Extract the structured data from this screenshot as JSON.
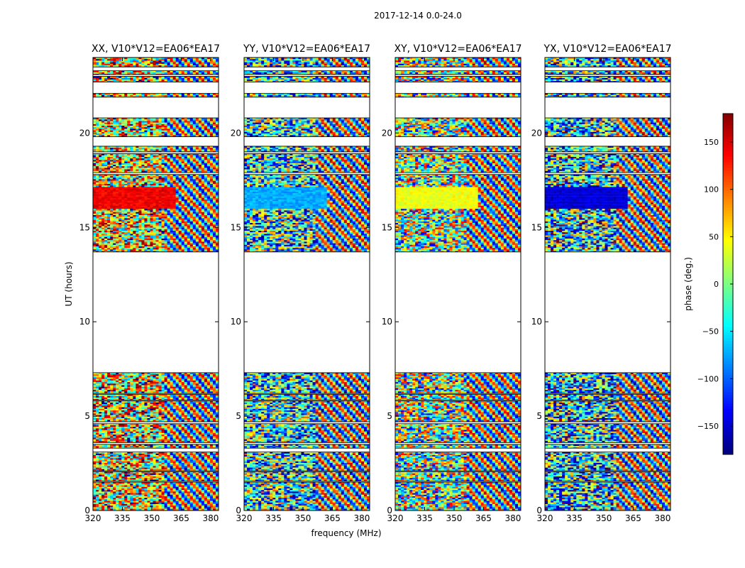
{
  "figure_title": "2017-12-14 0.0-24.0",
  "chart_data": {
    "type": "heatmap",
    "suptitle": "2017-12-14 0.0-24.0",
    "xlabel": "frequency (MHz)",
    "ylabel": "UT (hours)",
    "xlim": [
      320,
      384
    ],
    "ylim": [
      0,
      24
    ],
    "xticks": [
      320,
      335,
      350,
      365,
      380
    ],
    "xtick_labels": [
      "320",
      "335",
      "350",
      "365",
      "380"
    ],
    "yticks": [
      0,
      5,
      10,
      15,
      20
    ],
    "ytick_labels": [
      "0",
      "5",
      "10",
      "15",
      "20"
    ],
    "colorbar": {
      "label": "phase (deg.)",
      "range": [
        -180,
        180
      ],
      "ticks": [
        150,
        100,
        50,
        0,
        -50,
        -100,
        -150
      ],
      "tick_labels": [
        "150",
        "100",
        "50",
        "0",
        "−50",
        "−100",
        "−150"
      ],
      "colormap": "jet",
      "colors": [
        "#00007f",
        "#0000ff",
        "#007fff",
        "#00ffff",
        "#7fff7f",
        "#ffff00",
        "#ff7f00",
        "#ff0000",
        "#7f0000"
      ]
    },
    "data_bands_ut": [
      [
        0.0,
        1.5
      ],
      [
        1.55,
        2.05
      ],
      [
        2.1,
        3.1
      ],
      [
        3.3,
        3.5
      ],
      [
        3.6,
        4.6
      ],
      [
        4.7,
        5.8
      ],
      [
        5.85,
        6.15
      ],
      [
        6.2,
        7.3
      ],
      [
        13.7,
        17.8
      ],
      [
        17.9,
        18.9
      ],
      [
        19.0,
        19.3
      ],
      [
        19.8,
        20.8
      ],
      [
        21.9,
        22.1
      ],
      [
        22.7,
        23.0
      ],
      [
        23.1,
        23.3
      ],
      [
        23.5,
        24.0
      ]
    ],
    "panels": [
      {
        "title": "XX, V10*V12=EA06*EA17",
        "mean_phase_deg": 150,
        "bright_band_ut": [
          16.0,
          17.1
        ],
        "bright_band_phase_deg": 140
      },
      {
        "title": "YY, V10*V12=EA06*EA17",
        "mean_phase_deg": -90,
        "bright_band_ut": [
          16.0,
          17.1
        ],
        "bright_band_phase_deg": -75
      },
      {
        "title": "XY, V10*V12=EA06*EA17",
        "mean_phase_deg": 0,
        "bright_band_ut": [
          16.0,
          17.1
        ],
        "bright_band_phase_deg": 40
      },
      {
        "title": "YX, V10*V12=EA06*EA17",
        "mean_phase_deg": -140,
        "bright_band_ut": [
          16.0,
          17.1
        ],
        "bright_band_phase_deg": -150
      }
    ]
  }
}
